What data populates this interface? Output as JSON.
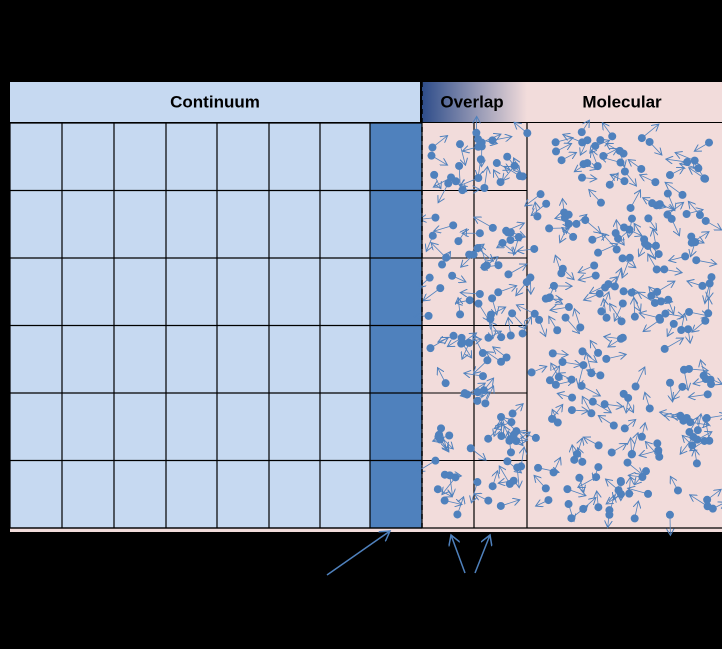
{
  "regions": {
    "continuum": {
      "label": "Continuum"
    },
    "overlap": {
      "label": "Overlap"
    },
    "molecular": {
      "label": "Molecular"
    }
  }
}
